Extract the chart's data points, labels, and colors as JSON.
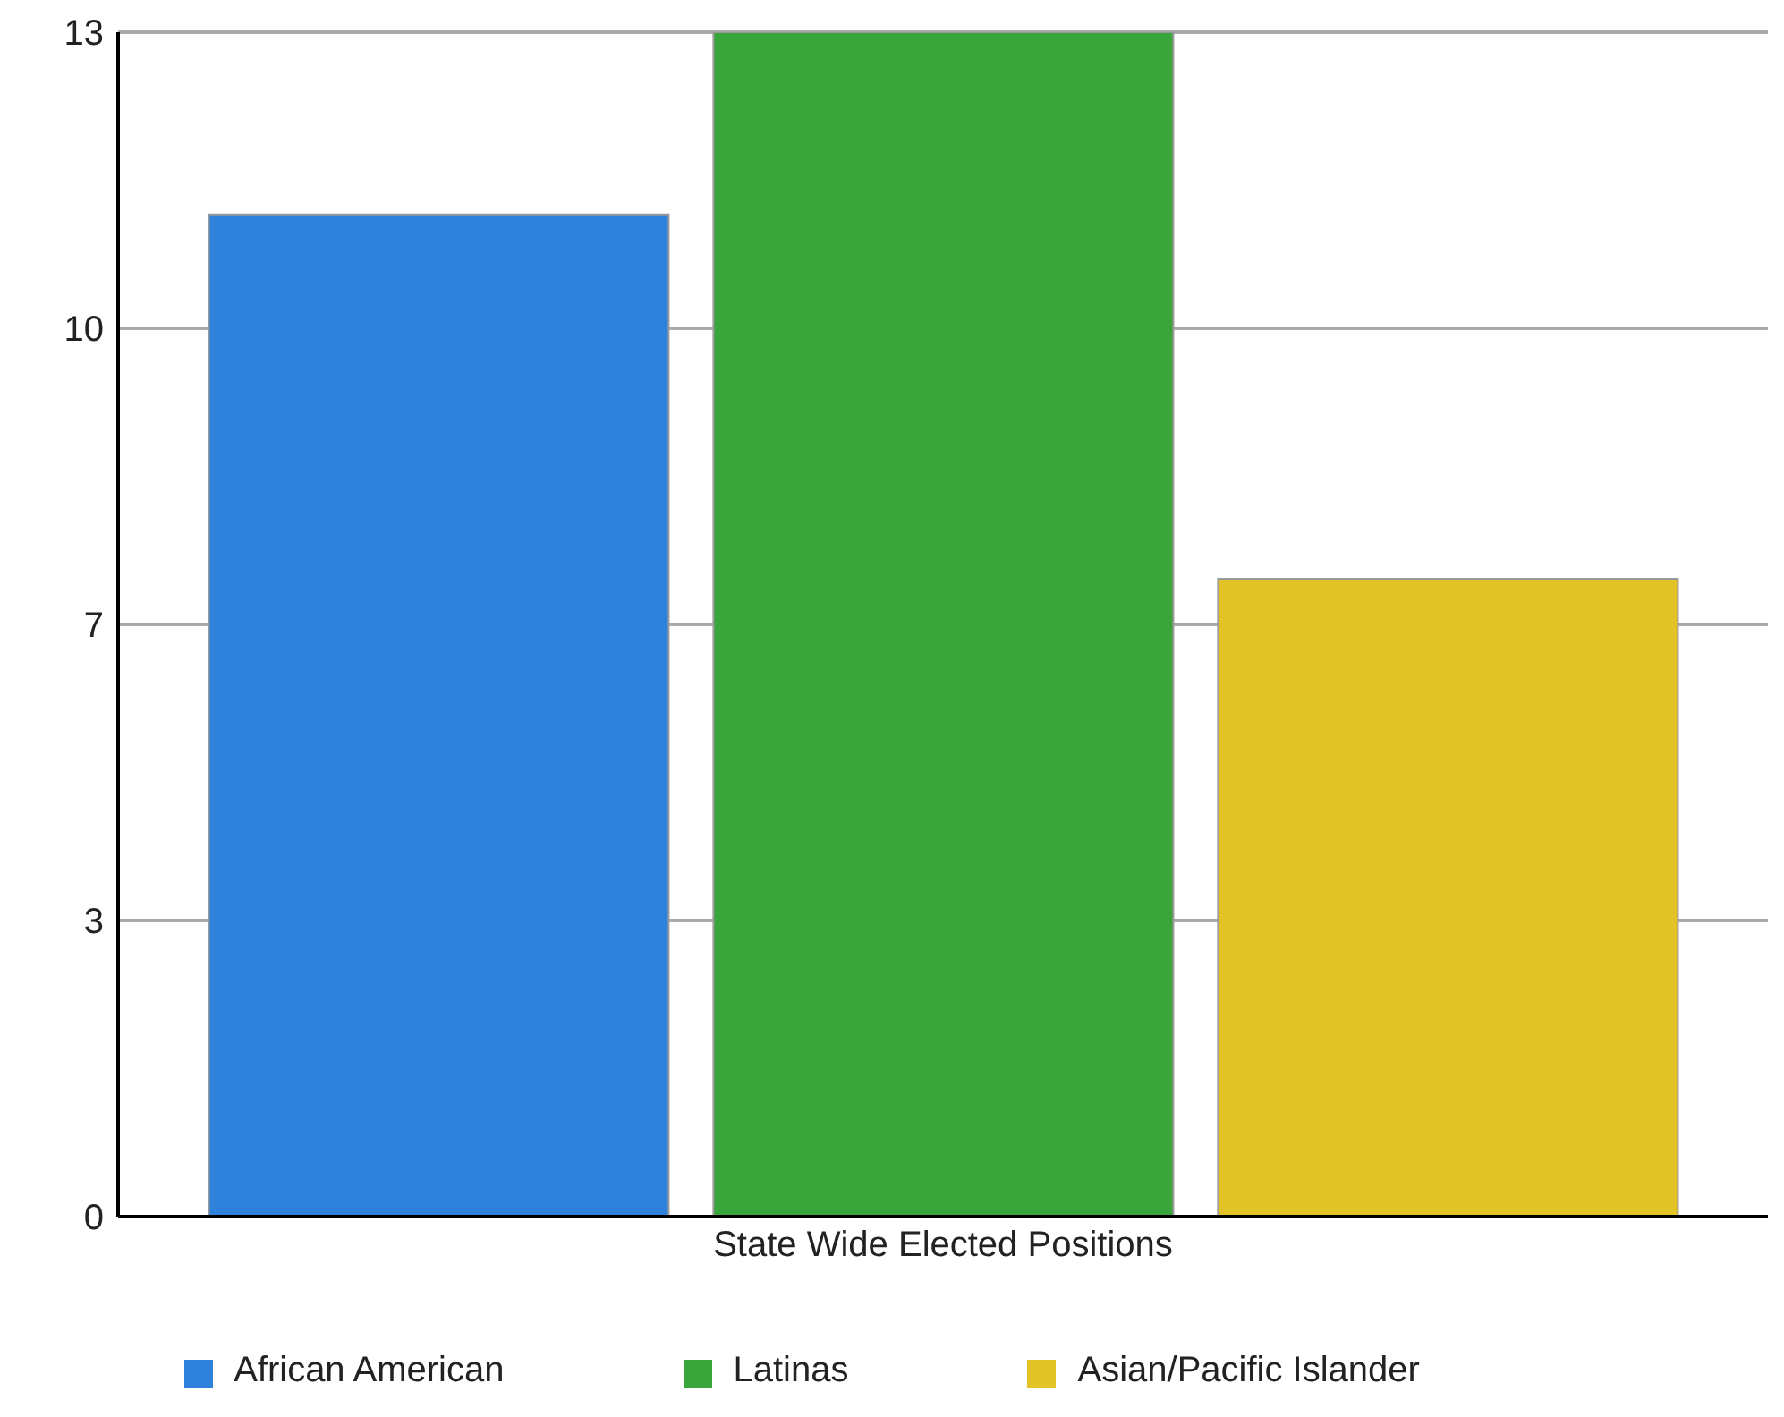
{
  "chart_data": {
    "type": "bar",
    "categories": [
      "State Wide Elected Positions"
    ],
    "series": [
      {
        "name": "African American",
        "color": "#2f82dc",
        "values": [
          11
        ]
      },
      {
        "name": "Latinas",
        "color": "#3aa53a",
        "values": [
          13
        ]
      },
      {
        "name": "Asian/Pacific Islander",
        "color": "#e2c426",
        "values": [
          7
        ]
      }
    ],
    "ylim": [
      0,
      13
    ],
    "yticks": [
      0,
      {
        "value": 3.25,
        "label": "3"
      },
      {
        "value": 6.5,
        "label": "7"
      },
      {
        "value": 9.75,
        "label": "10"
      },
      13
    ],
    "grid": "y",
    "legend": "bottom"
  }
}
